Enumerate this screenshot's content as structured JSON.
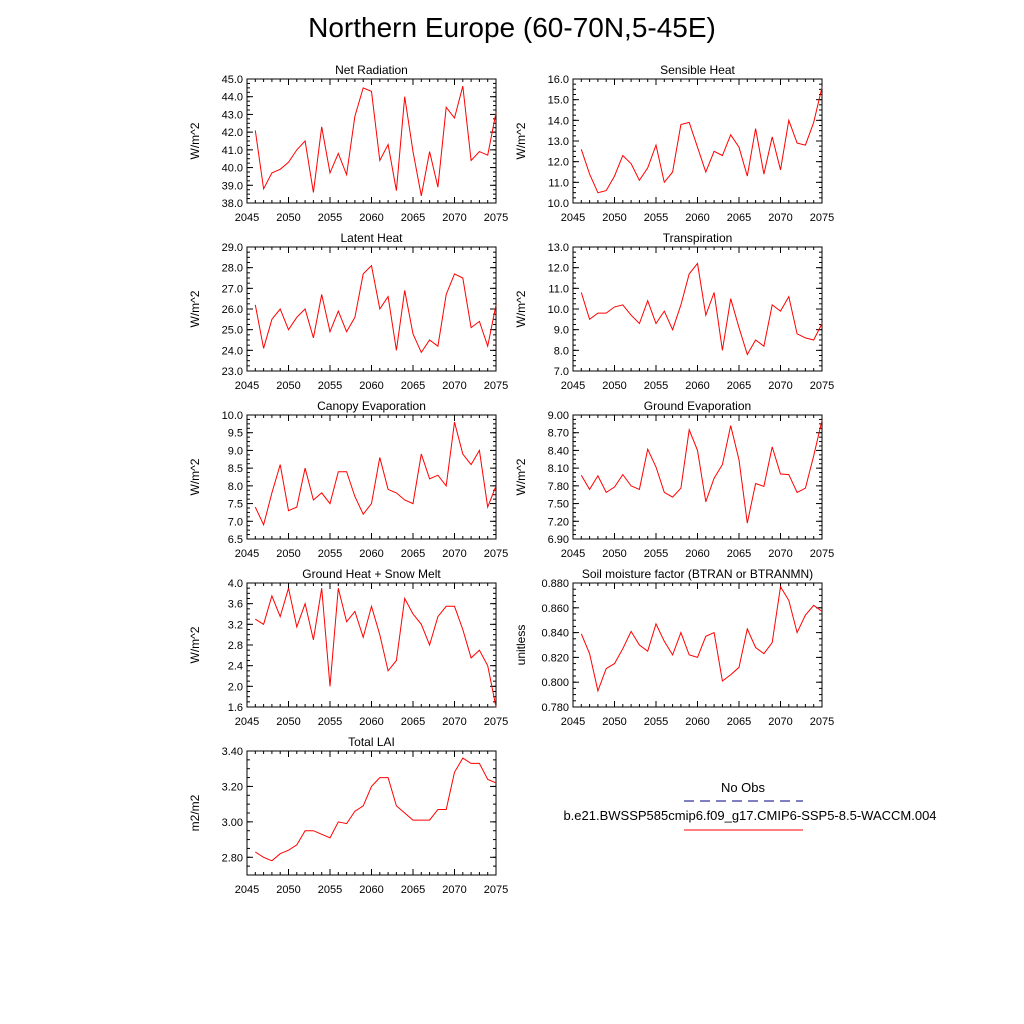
{
  "figure": {
    "title": "Northern Europe (60-70N,5-45E)"
  },
  "colors": {
    "model_line": "#ff0000",
    "obs_line": "#000080",
    "axis": "#000000"
  },
  "legend": {
    "obs_label": "No Obs",
    "model_label": "b.e21.BWSSP585cmip6.f09_g17.CMIP6-SSP5-8.5-WACCM.004"
  },
  "chart_data": [
    {
      "type": "line",
      "title": "Net Radiation",
      "ylabel": "W/m^2",
      "xlim": [
        2045,
        2075
      ],
      "ylim": [
        38.0,
        45.0
      ],
      "xticks": [
        2045,
        2050,
        2055,
        2060,
        2065,
        2070,
        2075
      ],
      "yticks": [
        "38.0",
        "39.0",
        "40.0",
        "41.0",
        "42.0",
        "43.0",
        "44.0",
        "45.0"
      ],
      "x": [
        2046,
        2047,
        2048,
        2049,
        2050,
        2051,
        2052,
        2053,
        2054,
        2055,
        2056,
        2057,
        2058,
        2059,
        2060,
        2061,
        2062,
        2063,
        2064,
        2065,
        2066,
        2067,
        2068,
        2069,
        2070,
        2071,
        2072,
        2073,
        2074,
        2075
      ],
      "values": [
        42.1,
        38.8,
        39.7,
        39.9,
        40.3,
        41.0,
        41.5,
        38.6,
        42.3,
        39.7,
        40.8,
        39.6,
        42.9,
        44.5,
        44.3,
        40.4,
        41.3,
        38.7,
        44.0,
        40.9,
        38.4,
        40.9,
        38.9,
        43.4,
        42.8,
        44.6,
        40.4,
        40.9,
        40.7,
        43.1
      ]
    },
    {
      "type": "line",
      "title": "Sensible Heat",
      "ylabel": "W/m^2",
      "xlim": [
        2045,
        2075
      ],
      "ylim": [
        10.0,
        16.0
      ],
      "xticks": [
        2045,
        2050,
        2055,
        2060,
        2065,
        2070,
        2075
      ],
      "yticks": [
        "10.0",
        "11.0",
        "12.0",
        "13.0",
        "14.0",
        "15.0",
        "16.0"
      ],
      "x": [
        2046,
        2047,
        2048,
        2049,
        2050,
        2051,
        2052,
        2053,
        2054,
        2055,
        2056,
        2057,
        2058,
        2059,
        2060,
        2061,
        2062,
        2063,
        2064,
        2065,
        2066,
        2067,
        2068,
        2069,
        2070,
        2071,
        2072,
        2073,
        2074,
        2075
      ],
      "values": [
        12.6,
        11.4,
        10.5,
        10.6,
        11.3,
        12.3,
        11.9,
        11.1,
        11.7,
        12.8,
        11.0,
        11.5,
        13.8,
        13.9,
        12.7,
        11.5,
        12.5,
        12.3,
        13.3,
        12.7,
        11.3,
        13.6,
        11.4,
        13.2,
        11.6,
        14.0,
        12.9,
        12.8,
        13.9,
        15.6
      ]
    },
    {
      "type": "line",
      "title": "Latent Heat",
      "ylabel": "W/m^2",
      "xlim": [
        2045,
        2075
      ],
      "ylim": [
        23.0,
        29.0
      ],
      "xticks": [
        2045,
        2050,
        2055,
        2060,
        2065,
        2070,
        2075
      ],
      "yticks": [
        "23.0",
        "24.0",
        "25.0",
        "26.0",
        "27.0",
        "28.0",
        "29.0"
      ],
      "x": [
        2046,
        2047,
        2048,
        2049,
        2050,
        2051,
        2052,
        2053,
        2054,
        2055,
        2056,
        2057,
        2058,
        2059,
        2060,
        2061,
        2062,
        2063,
        2064,
        2065,
        2066,
        2067,
        2068,
        2069,
        2070,
        2071,
        2072,
        2073,
        2074,
        2075
      ],
      "values": [
        26.2,
        24.1,
        25.5,
        26.0,
        25.0,
        25.6,
        26.0,
        24.6,
        26.7,
        24.9,
        25.9,
        24.9,
        25.6,
        27.7,
        28.1,
        26.0,
        26.6,
        24.0,
        26.9,
        24.8,
        23.9,
        24.5,
        24.2,
        26.7,
        27.7,
        27.5,
        25.1,
        25.4,
        24.2,
        26.2
      ]
    },
    {
      "type": "line",
      "title": "Transpiration",
      "ylabel": "W/m^2",
      "xlim": [
        2045,
        2075
      ],
      "ylim": [
        7.0,
        13.0
      ],
      "xticks": [
        2045,
        2050,
        2055,
        2060,
        2065,
        2070,
        2075
      ],
      "yticks": [
        "7.0",
        "8.0",
        "9.0",
        "10.0",
        "11.0",
        "12.0",
        "13.0"
      ],
      "x": [
        2046,
        2047,
        2048,
        2049,
        2050,
        2051,
        2052,
        2053,
        2054,
        2055,
        2056,
        2057,
        2058,
        2059,
        2060,
        2061,
        2062,
        2063,
        2064,
        2065,
        2066,
        2067,
        2068,
        2069,
        2070,
        2071,
        2072,
        2073,
        2074,
        2075
      ],
      "values": [
        10.8,
        9.5,
        9.8,
        9.8,
        10.1,
        10.2,
        9.7,
        9.3,
        10.4,
        9.3,
        9.9,
        9.0,
        10.2,
        11.7,
        12.2,
        9.7,
        10.8,
        8.0,
        10.5,
        9.1,
        7.8,
        8.5,
        8.2,
        10.2,
        9.9,
        10.6,
        8.8,
        8.6,
        8.5,
        9.3
      ]
    },
    {
      "type": "line",
      "title": "Canopy Evaporation",
      "ylabel": "W/m^2",
      "xlim": [
        2045,
        2075
      ],
      "ylim": [
        6.5,
        10.0
      ],
      "xticks": [
        2045,
        2050,
        2055,
        2060,
        2065,
        2070,
        2075
      ],
      "yticks": [
        "6.5",
        "7.0",
        "7.5",
        "8.0",
        "8.5",
        "9.0",
        "9.5",
        "10.0"
      ],
      "x": [
        2046,
        2047,
        2048,
        2049,
        2050,
        2051,
        2052,
        2053,
        2054,
        2055,
        2056,
        2057,
        2058,
        2059,
        2060,
        2061,
        2062,
        2063,
        2064,
        2065,
        2066,
        2067,
        2068,
        2069,
        2070,
        2071,
        2072,
        2073,
        2074,
        2075
      ],
      "values": [
        7.4,
        6.9,
        7.8,
        8.6,
        7.3,
        7.4,
        8.5,
        7.6,
        7.8,
        7.5,
        8.4,
        8.4,
        7.7,
        7.2,
        7.5,
        8.8,
        7.9,
        7.8,
        7.6,
        7.5,
        8.9,
        8.2,
        8.3,
        8.0,
        9.8,
        8.9,
        8.6,
        9.0,
        7.4,
        8.0
      ]
    },
    {
      "type": "line",
      "title": "Ground Evaporation",
      "ylabel": "W/m^2",
      "xlim": [
        2045,
        2075
      ],
      "ylim": [
        6.9,
        9.0
      ],
      "xticks": [
        2045,
        2050,
        2055,
        2060,
        2065,
        2070,
        2075
      ],
      "yticks": [
        "6.90",
        "7.20",
        "7.50",
        "7.80",
        "8.10",
        "8.40",
        "8.70",
        "9.00"
      ],
      "x": [
        2046,
        2047,
        2048,
        2049,
        2050,
        2051,
        2052,
        2053,
        2054,
        2055,
        2056,
        2057,
        2058,
        2059,
        2060,
        2061,
        2062,
        2063,
        2064,
        2065,
        2066,
        2067,
        2068,
        2069,
        2070,
        2071,
        2072,
        2073,
        2074,
        2075
      ],
      "values": [
        7.98,
        7.74,
        7.97,
        7.69,
        7.78,
        7.99,
        7.8,
        7.74,
        8.42,
        8.12,
        7.69,
        7.61,
        7.76,
        8.75,
        8.4,
        7.53,
        7.93,
        8.16,
        8.82,
        8.24,
        7.17,
        7.84,
        7.79,
        8.46,
        8.0,
        7.99,
        7.69,
        7.76,
        8.31,
        8.91
      ]
    },
    {
      "type": "line",
      "title": "Ground Heat + Snow Melt",
      "ylabel": "W/m^2",
      "xlim": [
        2045,
        2075
      ],
      "ylim": [
        1.6,
        4.0
      ],
      "xticks": [
        2045,
        2050,
        2055,
        2060,
        2065,
        2070,
        2075
      ],
      "yticks": [
        "1.6",
        "2.0",
        "2.4",
        "2.8",
        "3.2",
        "3.6",
        "4.0"
      ],
      "x": [
        2046,
        2047,
        2048,
        2049,
        2050,
        2051,
        2052,
        2053,
        2054,
        2055,
        2056,
        2057,
        2058,
        2059,
        2060,
        2061,
        2062,
        2063,
        2064,
        2065,
        2066,
        2067,
        2068,
        2069,
        2070,
        2071,
        2072,
        2073,
        2074,
        2075
      ],
      "values": [
        3.3,
        3.2,
        3.75,
        3.35,
        3.9,
        3.15,
        3.6,
        2.9,
        3.9,
        2.0,
        3.9,
        3.25,
        3.45,
        2.95,
        3.55,
        3.0,
        2.3,
        2.5,
        3.7,
        3.4,
        3.2,
        2.8,
        3.35,
        3.55,
        3.55,
        3.1,
        2.55,
        2.7,
        2.4,
        1.6
      ]
    },
    {
      "type": "line",
      "title": "Soil moisture factor (BTRAN or BTRANMN)",
      "ylabel": "unitless",
      "xlim": [
        2045,
        2075
      ],
      "ylim": [
        0.78,
        0.88
      ],
      "xticks": [
        2045,
        2050,
        2055,
        2060,
        2065,
        2070,
        2075
      ],
      "yticks": [
        "0.780",
        "0.800",
        "0.820",
        "0.840",
        "0.860",
        "0.880"
      ],
      "x": [
        2046,
        2047,
        2048,
        2049,
        2050,
        2051,
        2052,
        2053,
        2054,
        2055,
        2056,
        2057,
        2058,
        2059,
        2060,
        2061,
        2062,
        2063,
        2064,
        2065,
        2066,
        2067,
        2068,
        2069,
        2070,
        2071,
        2072,
        2073,
        2074,
        2075
      ],
      "values": [
        0.839,
        0.823,
        0.793,
        0.811,
        0.815,
        0.827,
        0.841,
        0.83,
        0.825,
        0.847,
        0.833,
        0.822,
        0.84,
        0.822,
        0.82,
        0.837,
        0.84,
        0.801,
        0.806,
        0.812,
        0.843,
        0.828,
        0.823,
        0.832,
        0.877,
        0.866,
        0.84,
        0.854,
        0.862,
        0.857
      ]
    },
    {
      "type": "line",
      "title": "Total LAI",
      "ylabel": "m2/m2",
      "xlim": [
        2045,
        2075
      ],
      "ylim": [
        2.7,
        3.4
      ],
      "xticks": [
        2045,
        2050,
        2055,
        2060,
        2065,
        2070,
        2075
      ],
      "yticks": [
        "2.80",
        "3.00",
        "3.20",
        "3.40"
      ],
      "x": [
        2046,
        2047,
        2048,
        2049,
        2050,
        2051,
        2052,
        2053,
        2054,
        2055,
        2056,
        2057,
        2058,
        2059,
        2060,
        2061,
        2062,
        2063,
        2064,
        2065,
        2066,
        2067,
        2068,
        2069,
        2070,
        2071,
        2072,
        2073,
        2074,
        2075
      ],
      "values": [
        2.83,
        2.8,
        2.78,
        2.82,
        2.84,
        2.87,
        2.95,
        2.95,
        2.93,
        2.91,
        3.0,
        2.99,
        3.06,
        3.09,
        3.2,
        3.25,
        3.25,
        3.09,
        3.05,
        3.01,
        3.01,
        3.01,
        3.07,
        3.07,
        3.28,
        3.36,
        3.33,
        3.33,
        3.24,
        3.22
      ]
    }
  ]
}
